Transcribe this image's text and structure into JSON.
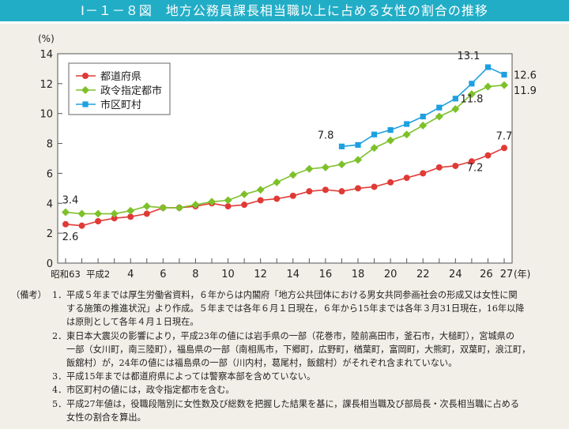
{
  "title": "Ⅰ－１－８図　地方公務員課長相当職以上に占める女性の割合の推移",
  "chart_data": {
    "type": "line",
    "title": "Ⅰ－１－８図　地方公務員課長相当職以上に占める女性の割合の推移",
    "ylabel": "(%)",
    "xlabel": "(年)",
    "ylim": [
      0,
      14
    ],
    "yticks": [
      "0",
      "2",
      "4",
      "6",
      "8",
      "10",
      "12",
      "14"
    ],
    "x": [
      "昭和63",
      "平成1",
      "平成2",
      "3",
      "4",
      "5",
      "6",
      "7",
      "8",
      "9",
      "10",
      "11",
      "12",
      "13",
      "14",
      "15",
      "16",
      "17",
      "18",
      "19",
      "20",
      "21",
      "22",
      "23",
      "24",
      "25",
      "26",
      "27"
    ],
    "xtick_labels": [
      {
        "i": 0,
        "label": "昭和63"
      },
      {
        "i": 2,
        "label": "平成2"
      },
      {
        "i": 4,
        "label": "4"
      },
      {
        "i": 6,
        "label": "6"
      },
      {
        "i": 8,
        "label": "8"
      },
      {
        "i": 10,
        "label": "10"
      },
      {
        "i": 12,
        "label": "12"
      },
      {
        "i": 14,
        "label": "14"
      },
      {
        "i": 16,
        "label": "16"
      },
      {
        "i": 18,
        "label": "18"
      },
      {
        "i": 20,
        "label": "20"
      },
      {
        "i": 22,
        "label": "22"
      },
      {
        "i": 24,
        "label": "24"
      },
      {
        "i": 26,
        "label": "26"
      },
      {
        "i": 27,
        "label": "27"
      }
    ],
    "grid": false,
    "legend_placement": "top-left",
    "series": [
      {
        "name": "都道府県",
        "color": "#e03a36",
        "marker": "circle",
        "values": [
          2.6,
          2.5,
          2.8,
          3.0,
          3.1,
          3.3,
          3.7,
          3.7,
          3.8,
          4.0,
          3.8,
          3.9,
          4.2,
          4.3,
          4.5,
          4.8,
          4.9,
          4.8,
          5.0,
          5.1,
          5.4,
          5.7,
          6.0,
          6.4,
          6.5,
          6.8,
          7.2,
          7.7
        ]
      },
      {
        "name": "政令指定都市",
        "color": "#7dc12a",
        "marker": "diamond",
        "values": [
          3.4,
          3.3,
          3.3,
          3.3,
          3.5,
          3.8,
          3.7,
          3.7,
          3.9,
          4.1,
          4.2,
          4.6,
          4.9,
          5.4,
          5.9,
          6.3,
          6.4,
          6.6,
          6.9,
          7.7,
          8.2,
          8.6,
          9.2,
          9.8,
          10.3,
          11.3,
          11.8,
          11.9
        ]
      },
      {
        "name": "市区町村",
        "color": "#1ea0e0",
        "marker": "square",
        "values": [
          null,
          null,
          null,
          null,
          null,
          null,
          null,
          null,
          null,
          null,
          null,
          null,
          null,
          null,
          null,
          null,
          null,
          7.8,
          7.9,
          8.6,
          8.9,
          9.3,
          9.8,
          10.4,
          11.0,
          12.0,
          13.1,
          12.6
        ]
      }
    ],
    "annotations": [
      {
        "series": 1,
        "i": 0,
        "label": "3.4",
        "pos": "above"
      },
      {
        "series": 0,
        "i": 0,
        "label": "2.6",
        "pos": "below"
      },
      {
        "series": 2,
        "i": 17,
        "label": "7.8",
        "pos": "above-left"
      },
      {
        "series": 2,
        "i": 26,
        "label": "13.1",
        "pos": "above-left"
      },
      {
        "series": 2,
        "i": 27,
        "label": "12.6",
        "pos": "right"
      },
      {
        "series": 1,
        "i": 27,
        "label": "11.9",
        "pos": "right-low"
      },
      {
        "series": 1,
        "i": 26,
        "label": "11.8",
        "pos": "below-left"
      },
      {
        "series": 0,
        "i": 27,
        "label": "7.7",
        "pos": "above"
      },
      {
        "series": 0,
        "i": 26,
        "label": "7.2",
        "pos": "below-left"
      }
    ]
  },
  "notes": {
    "head": "（備考）",
    "items": [
      {
        "num": "1．",
        "lines": [
          "平成５年までは厚生労働省資料，６年からは内閣府「地方公共団体における男女共同参画社会の形成又は女性に関",
          "する施策の推進状況」より作成。５年までは各年６月１日現在，６年から15年までは各年３月31日現在，16年以降",
          "は原則として各年４月１日現在。"
        ]
      },
      {
        "num": "2．",
        "lines": [
          "東日本大震災の影響により，平成23年の値には岩手県の一部（花巻市，陸前高田市，釜石市，大槌町），宮城県の",
          "一部（女川町，南三陸町），福島県の一部（南相馬市，下郷町，広野町，楢葉町，富岡町，大熊町，双葉町，浪江町，",
          "飯舘村）が，24年の値には福島県の一部（川内村，葛尾村，飯舘村）がそれぞれ含まれていない。"
        ]
      },
      {
        "num": "3．",
        "lines": [
          "平成15年までは都道府県によっては警察本部を含めていない。"
        ]
      },
      {
        "num": "4．",
        "lines": [
          "市区町村の値には，政令指定都市を含む。"
        ]
      },
      {
        "num": "5．",
        "lines": [
          "平成27年値は，役職段階別に女性数及び総数を把握した結果を基に，課長相当職及び部局長・次長相当職に占める",
          "女性の割合を算出。"
        ]
      }
    ]
  }
}
